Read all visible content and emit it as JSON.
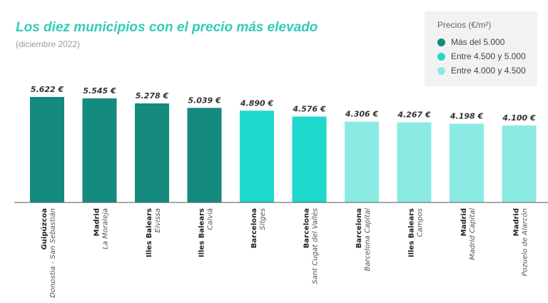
{
  "chart_data": {
    "type": "bar",
    "title": "Los diez municipios con el precio más elevado",
    "subtitle": "(diciembre 2022)",
    "legend": {
      "title": "Precios (€/m²)",
      "position": "top-right",
      "entries": [
        {
          "label": "Más del 5.000",
          "color": "#158a7e"
        },
        {
          "label": "Entre 4.500 y 5.000",
          "color": "#1fd8cc"
        },
        {
          "label": "Entre 4.000 y 4.500",
          "color": "#8ceae4"
        }
      ]
    },
    "ylim": [
      0,
      5622
    ],
    "grid": false,
    "bars": [
      {
        "province": "Guipúzcoa",
        "municipality": "Donostia - San Sebastián",
        "value": 5622,
        "label": "5.622 €",
        "color": "#158a7e"
      },
      {
        "province": "Madrid",
        "municipality": "La Moraleja",
        "value": 5545,
        "label": "5.545 €",
        "color": "#158a7e"
      },
      {
        "province": "Illes Balears",
        "municipality": "Eivissa",
        "value": 5278,
        "label": "5.278 €",
        "color": "#158a7e"
      },
      {
        "province": "Illes Balears",
        "municipality": "Calvià",
        "value": 5039,
        "label": "5.039 €",
        "color": "#158a7e"
      },
      {
        "province": "Barcelona",
        "municipality": "Sitges",
        "value": 4890,
        "label": "4.890 €",
        "color": "#1fd8cc"
      },
      {
        "province": "Barcelona",
        "municipality": "Sant Cugat del Vallès",
        "value": 4576,
        "label": "4.576 €",
        "color": "#1fd8cc"
      },
      {
        "province": "Barcelona",
        "municipality": "Barcelona Capital",
        "value": 4306,
        "label": "4.306 €",
        "color": "#8ceae4"
      },
      {
        "province": "Illes Balears",
        "municipality": "Campos",
        "value": 4267,
        "label": "4.267 €",
        "color": "#8ceae4"
      },
      {
        "province": "Madrid",
        "municipality": "Madrid Capital",
        "value": 4198,
        "label": "4.198 €",
        "color": "#8ceae4"
      },
      {
        "province": "Madrid",
        "municipality": "Pozuelo de Alarcón",
        "value": 4100,
        "label": "4.100 €",
        "color": "#8ceae4"
      }
    ]
  }
}
